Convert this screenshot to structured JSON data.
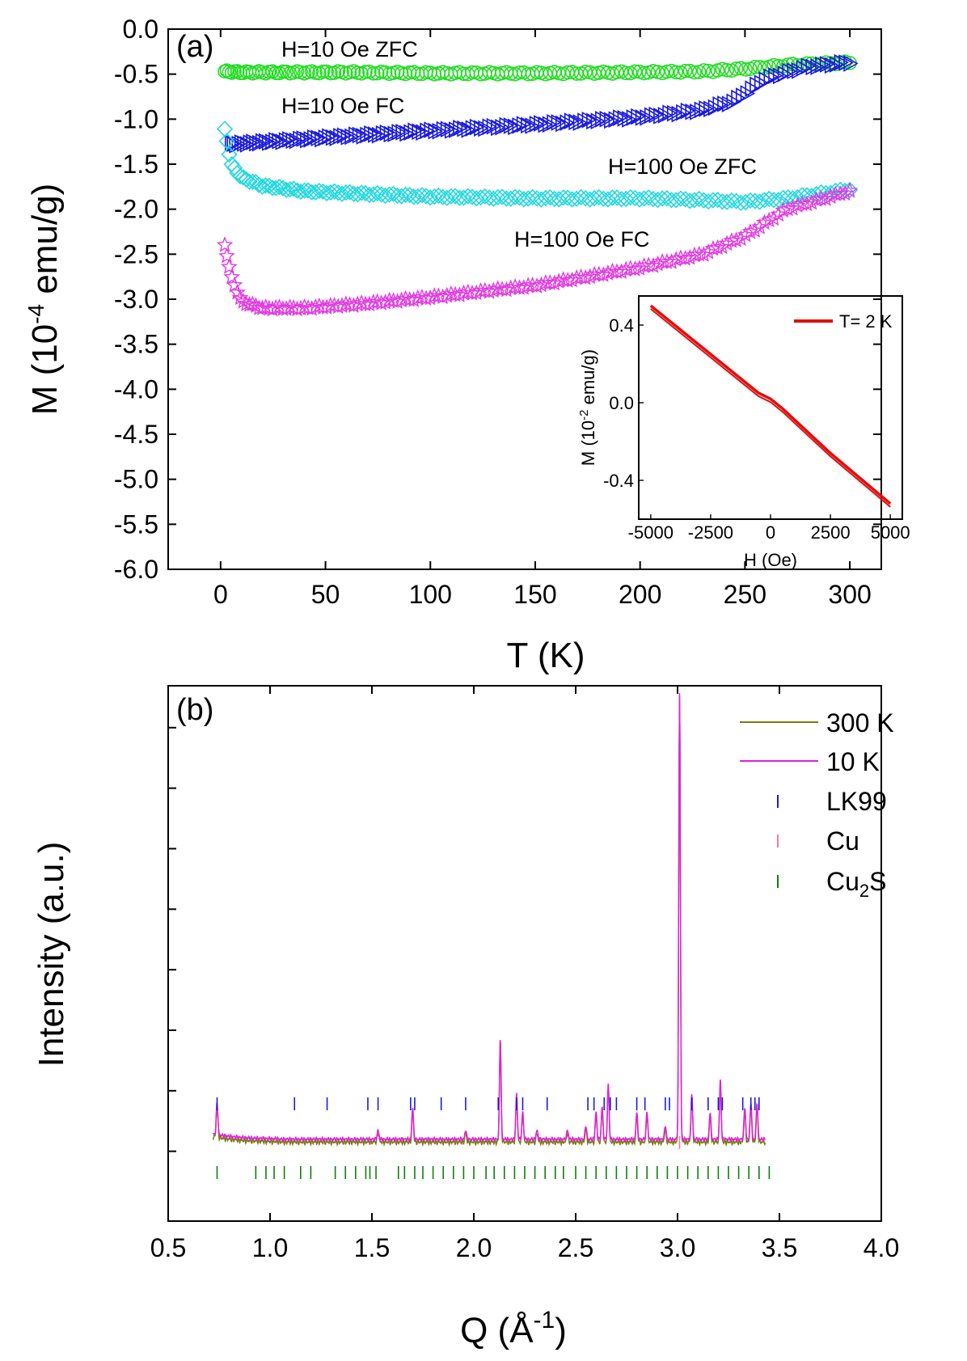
{
  "chart_data": [
    {
      "panel": "(a)",
      "type": "scatter",
      "xlabel": "T (K)",
      "ylabel": "M (10-4 emu/g)",
      "ylabel_parts": {
        "pre": "M (10",
        "sup": "-4",
        "post": " emu/g)"
      },
      "xlim": [
        -25,
        315
      ],
      "ylim": [
        -6.0,
        0.0
      ],
      "xticks": [
        "0",
        "50",
        "100",
        "150",
        "200",
        "250",
        "300"
      ],
      "yticks": [
        "0.0",
        "-0.5",
        "-1.0",
        "-1.5",
        "-2.0",
        "-2.5",
        "-3.0",
        "-3.5",
        "-4.0",
        "-4.5",
        "-5.0",
        "-5.5",
        "-6.0"
      ],
      "series": [
        {
          "name": "H=10 Oe ZFC",
          "color": "#22dd22",
          "marker": "circle",
          "x": [
            2,
            10,
            30,
            60,
            100,
            150,
            200,
            230,
            250,
            270,
            300
          ],
          "y": [
            -0.47,
            -0.48,
            -0.48,
            -0.48,
            -0.49,
            -0.49,
            -0.48,
            -0.47,
            -0.44,
            -0.4,
            -0.37
          ]
        },
        {
          "name": "H=10 Oe FC",
          "color": "#1a1adc",
          "marker": "triangle",
          "x": [
            5,
            30,
            60,
            100,
            150,
            200,
            230,
            245,
            260,
            280,
            300
          ],
          "y": [
            -1.28,
            -1.24,
            -1.19,
            -1.13,
            -1.06,
            -0.98,
            -0.9,
            -0.8,
            -0.55,
            -0.42,
            -0.37
          ]
        },
        {
          "name": "H=100 Oe ZFC",
          "color": "#22d8e0",
          "marker": "diamond",
          "x": [
            2,
            5,
            10,
            20,
            40,
            70,
            100,
            150,
            200,
            230,
            250,
            270,
            300
          ],
          "y": [
            -1.12,
            -1.5,
            -1.65,
            -1.74,
            -1.8,
            -1.83,
            -1.86,
            -1.88,
            -1.88,
            -1.9,
            -1.92,
            -1.88,
            -1.78
          ]
        },
        {
          "name": "H=100 Oe FC",
          "color": "#e23ae2",
          "marker": "star",
          "x": [
            2,
            5,
            10,
            20,
            40,
            70,
            100,
            150,
            200,
            230,
            250,
            270,
            300
          ],
          "y": [
            -2.4,
            -2.75,
            -3.03,
            -3.1,
            -3.1,
            -3.05,
            -2.98,
            -2.85,
            -2.65,
            -2.5,
            -2.3,
            -2.0,
            -1.8
          ]
        }
      ],
      "inset": {
        "type": "line",
        "xlabel": "H (Oe)",
        "ylabel": "M (10-2 emu/g)",
        "ylabel_parts": {
          "pre": "M (10",
          "sup": "-2",
          "post": " emu/g)"
        },
        "xlim": [
          -5500,
          5500
        ],
        "ylim": [
          -0.6,
          0.55
        ],
        "xticks": [
          "-5000",
          "-2500",
          "0",
          "2500",
          "5000"
        ],
        "yticks": [
          "0.4",
          "0.0",
          "-0.4"
        ],
        "legend": "T= 2 K",
        "color": "#e01010",
        "x": [
          -5000,
          -2500,
          -500,
          0,
          500,
          2500,
          5000
        ],
        "y": [
          0.5,
          0.25,
          0.05,
          0.02,
          -0.03,
          -0.26,
          -0.52
        ]
      }
    },
    {
      "panel": "(b)",
      "type": "line",
      "xlabel": "Q (Å-1)",
      "xlabel_parts": {
        "pre": "Q (Å",
        "sup": "-1",
        "post": ")"
      },
      "ylabel": "Intensity (a.u.)",
      "xlim": [
        0.5,
        4.0
      ],
      "xticks": [
        "0.5",
        "1.0",
        "1.5",
        "2.0",
        "2.5",
        "3.0",
        "3.5",
        "4.0"
      ],
      "ylim": [
        -0.15,
        1.0
      ],
      "yticks_unlabeled": [
        0,
        0.13,
        0.26,
        0.39,
        0.52,
        0.65,
        0.78,
        0.91
      ],
      "baseline": 0.02,
      "peaks": [
        {
          "q": 0.74,
          "h": 0.07
        },
        {
          "q": 1.53,
          "h": 0.02
        },
        {
          "q": 1.7,
          "h": 0.07
        },
        {
          "q": 1.96,
          "h": 0.02
        },
        {
          "q": 2.13,
          "h": 0.22
        },
        {
          "q": 2.21,
          "h": 0.1
        },
        {
          "q": 2.24,
          "h": 0.06
        },
        {
          "q": 2.31,
          "h": 0.02
        },
        {
          "q": 2.46,
          "h": 0.02
        },
        {
          "q": 2.55,
          "h": 0.03
        },
        {
          "q": 2.6,
          "h": 0.06
        },
        {
          "q": 2.63,
          "h": 0.07
        },
        {
          "q": 2.66,
          "h": 0.12
        },
        {
          "q": 2.8,
          "h": 0.06
        },
        {
          "q": 2.85,
          "h": 0.06
        },
        {
          "q": 2.94,
          "h": 0.03
        },
        {
          "q": 3.01,
          "h": 0.96
        },
        {
          "q": 3.07,
          "h": 0.1
        },
        {
          "q": 3.16,
          "h": 0.06
        },
        {
          "q": 3.21,
          "h": 0.13
        },
        {
          "q": 3.33,
          "h": 0.07
        },
        {
          "q": 3.36,
          "h": 0.08
        },
        {
          "q": 3.39,
          "h": 0.08
        }
      ],
      "series": [
        {
          "name": "300 K",
          "color": "#7a7a10"
        },
        {
          "name": "10 K",
          "color": "#e020e0"
        }
      ],
      "ticks": [
        {
          "name": "LK99",
          "color": "#1a1adc",
          "positions": [
            0.74,
            1.12,
            1.28,
            1.48,
            1.53,
            1.69,
            1.71,
            1.84,
            1.96,
            2.12,
            2.21,
            2.24,
            2.36,
            2.56,
            2.59,
            2.64,
            2.67,
            2.7,
            2.8,
            2.84,
            2.94,
            2.96,
            3.07,
            3.15,
            3.2,
            3.22,
            3.32,
            3.36,
            3.38,
            3.4
          ]
        },
        {
          "name": "Cu",
          "color": "#f07aa8",
          "positions": [
            3.01
          ]
        },
        {
          "name": "Cu2S",
          "color": "#0f7f0f",
          "name_parts": {
            "pre": "Cu",
            "sub": "2",
            "post": "S"
          },
          "positions": [
            0.74,
            0.93,
            0.98,
            1.02,
            1.07,
            1.15,
            1.2,
            1.32,
            1.37,
            1.42,
            1.47,
            1.49,
            1.52,
            1.63,
            1.66,
            1.71,
            1.75,
            1.8,
            1.85,
            1.9,
            1.95,
            2.0,
            2.06,
            2.1,
            2.15,
            2.2,
            2.25,
            2.3,
            2.35,
            2.4,
            2.44,
            2.5,
            2.55,
            2.6,
            2.65,
            2.7,
            2.75,
            2.8,
            2.85,
            2.9,
            2.95,
            3.0,
            3.05,
            3.1,
            3.15,
            3.2,
            3.25,
            3.3,
            3.35,
            3.4,
            3.45
          ]
        }
      ]
    }
  ]
}
